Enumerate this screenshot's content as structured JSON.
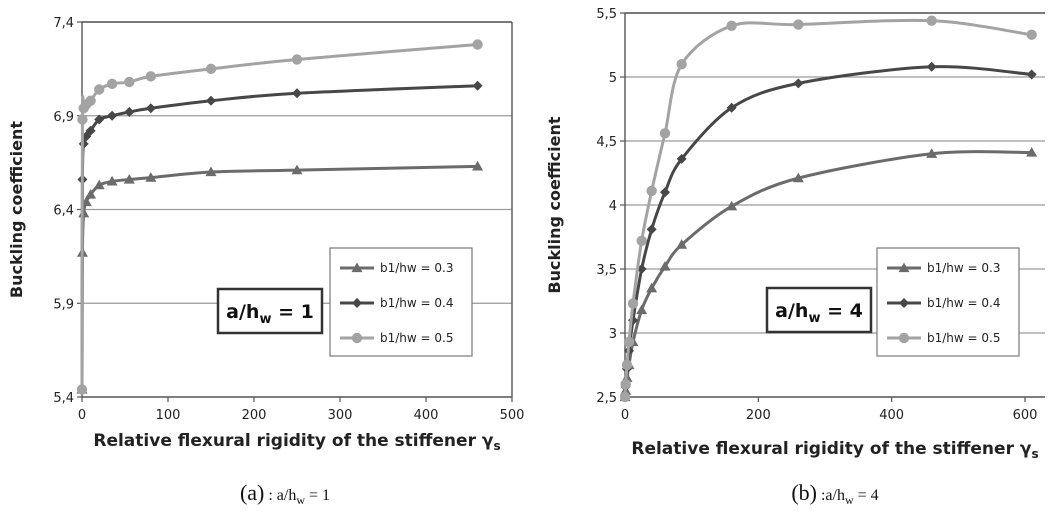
{
  "chart_data": [
    {
      "type": "line",
      "ylabel": "Buckling coefficient",
      "xlabel": "Relative flexural rigidity of the stiffener",
      "xlabel_symbol": "γ",
      "xlabel_subscript": "s",
      "xlim": [
        0,
        500
      ],
      "ylim": [
        5.4,
        7.4
      ],
      "xticks": [
        0,
        100,
        200,
        300,
        400,
        500
      ],
      "yticks": [
        5.4,
        5.9,
        6.4,
        6.9,
        7.4
      ],
      "ytick_labels": [
        "5,4",
        "5,9",
        "6,4",
        "6,9",
        "7,4"
      ],
      "grid": "horizontal",
      "annotation": {
        "prefix": "a/h",
        "sub": "w",
        "suffix": " = 1"
      },
      "legend_position": "center-right",
      "caption": {
        "main": "(a)",
        "rest": " : a/h",
        "sub": "w",
        "tail": " = 1"
      },
      "series": [
        {
          "name": "b1/hw = 0.3",
          "marker": "triangle",
          "color": "#6b6b6b",
          "x": [
            0,
            0.5,
            2,
            5,
            10,
            20,
            35,
            55,
            80,
            150,
            250,
            460
          ],
          "y": [
            5.44,
            6.17,
            6.38,
            6.44,
            6.48,
            6.53,
            6.55,
            6.56,
            6.57,
            6.6,
            6.61,
            6.63
          ]
        },
        {
          "name": "b1/hw = 0.4",
          "marker": "diamond",
          "color": "#474747",
          "x": [
            0,
            0.5,
            2,
            5,
            10,
            20,
            35,
            55,
            80,
            150,
            250,
            460
          ],
          "y": [
            5.44,
            6.56,
            6.75,
            6.79,
            6.82,
            6.88,
            6.9,
            6.92,
            6.94,
            6.98,
            7.02,
            7.06
          ]
        },
        {
          "name": "b1/hw = 0.5",
          "marker": "circle",
          "color": "#a3a3a3",
          "x": [
            0,
            0.5,
            2,
            5,
            10,
            20,
            35,
            55,
            80,
            150,
            250,
            460
          ],
          "y": [
            5.44,
            6.88,
            6.94,
            6.96,
            6.98,
            7.04,
            7.07,
            7.08,
            7.11,
            7.15,
            7.2,
            7.28
          ]
        }
      ]
    },
    {
      "type": "line",
      "ylabel": "Buckling coefficient",
      "xlabel": "Relative flexural rigidity of the stiffener",
      "xlabel_symbol": "γ",
      "xlabel_subscript": "s",
      "xlim": [
        0,
        630
      ],
      "ylim": [
        2.5,
        5.5
      ],
      "xticks": [
        0,
        200,
        400,
        600
      ],
      "yticks": [
        2.5,
        3,
        3.5,
        4,
        4.5,
        5,
        5.5
      ],
      "ytick_labels": [
        "2,5",
        "3",
        "3,5",
        "4",
        "4,5",
        "5",
        "5,5"
      ],
      "grid": "horizontal",
      "annotation": {
        "prefix": "a/h",
        "sub": "w",
        "suffix": " = 4"
      },
      "legend_position": "center-right",
      "caption": {
        "main": "(b)",
        "rest": " :a/h",
        "sub": "w",
        "tail": " = 4"
      },
      "series": [
        {
          "name": "b1/hw = 0.3",
          "marker": "triangle",
          "color": "#6b6b6b",
          "x": [
            0,
            1,
            3,
            6,
            12,
            25,
            40,
            60,
            85,
            160,
            260,
            460,
            610
          ],
          "y": [
            2.5,
            2.55,
            2.65,
            2.75,
            2.93,
            3.18,
            3.35,
            3.52,
            3.69,
            3.99,
            4.21,
            4.4,
            4.41
          ]
        },
        {
          "name": "b1/hw = 0.4",
          "marker": "diamond",
          "color": "#474747",
          "x": [
            0,
            1,
            3,
            6,
            12,
            25,
            40,
            60,
            85,
            160,
            260,
            460,
            610
          ],
          "y": [
            2.5,
            2.58,
            2.72,
            2.86,
            3.1,
            3.5,
            3.81,
            4.1,
            4.36,
            4.76,
            4.95,
            5.08,
            5.02
          ]
        },
        {
          "name": "b1/hw = 0.5",
          "marker": "circle",
          "color": "#a3a3a3",
          "x": [
            0,
            1,
            3,
            6,
            12,
            25,
            40,
            60,
            85,
            160,
            260,
            460,
            610
          ],
          "y": [
            2.5,
            2.6,
            2.75,
            2.93,
            3.23,
            3.72,
            4.11,
            4.56,
            5.1,
            5.4,
            5.41,
            5.44,
            5.33
          ]
        }
      ]
    }
  ]
}
